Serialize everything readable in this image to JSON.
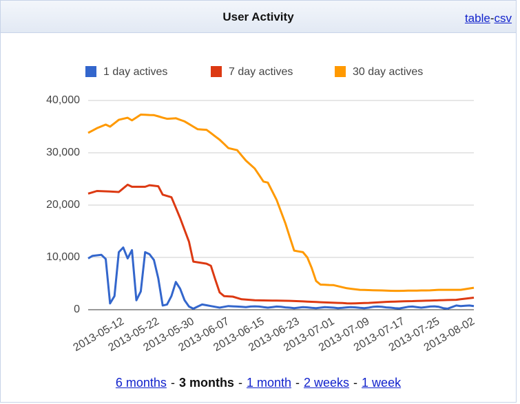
{
  "header": {
    "title": "User Activity",
    "links": [
      "table",
      "csv"
    ],
    "separator": "-"
  },
  "chart_data": {
    "type": "line",
    "categories": [
      null,
      null,
      null,
      null,
      null,
      null,
      null,
      null,
      "2013-05-12",
      null,
      null,
      null,
      null,
      null,
      null,
      null,
      "2013-05-22",
      null,
      null,
      null,
      null,
      null,
      null,
      null,
      "2013-05-30",
      null,
      null,
      null,
      null,
      null,
      null,
      null,
      "2013-06-07",
      null,
      null,
      null,
      null,
      null,
      null,
      null,
      "2013-06-15",
      null,
      null,
      null,
      null,
      null,
      null,
      null,
      "2013-06-23",
      null,
      null,
      null,
      null,
      null,
      null,
      null,
      "2013-07-01",
      null,
      null,
      null,
      null,
      null,
      null,
      null,
      "2013-07-09",
      null,
      null,
      null,
      null,
      null,
      null,
      null,
      "2013-07-17",
      null,
      null,
      null,
      null,
      null,
      null,
      null,
      "2013-07-25",
      null,
      null,
      null,
      null,
      null,
      null,
      null,
      "2013-08-02"
    ],
    "series": [
      {
        "name": "1 day actives",
        "color": "#3366cc",
        "values": [
          9800,
          10300,
          10400,
          10500,
          9700,
          1200,
          2600,
          11000,
          11900,
          9800,
          11400,
          1800,
          3500,
          11000,
          10600,
          9500,
          6000,
          800,
          1000,
          2600,
          5300,
          4000,
          1800,
          600,
          200,
          600,
          1000,
          850,
          700,
          550,
          400,
          550,
          700,
          650,
          600,
          550,
          500,
          600,
          650,
          600,
          500,
          400,
          500,
          600,
          550,
          450,
          400,
          300,
          400,
          500,
          450,
          350,
          300,
          400,
          500,
          450,
          400,
          300,
          350,
          450,
          500,
          450,
          350,
          300,
          400,
          550,
          600,
          550,
          450,
          400,
          300,
          250,
          400,
          550,
          600,
          500,
          400,
          500,
          600,
          650,
          550,
          300,
          200,
          500,
          800,
          700,
          750,
          800,
          700
        ]
      },
      {
        "name": "7 day actives",
        "color": "#dc3912",
        "values": [
          22200,
          22450,
          22700,
          22670,
          22630,
          22600,
          22550,
          22500,
          23200,
          23900,
          23500,
          23500,
          23500,
          23500,
          23800,
          23700,
          23600,
          22000,
          21750,
          21500,
          19500,
          17500,
          15250,
          13000,
          9200,
          9070,
          8930,
          8800,
          8400,
          5800,
          3300,
          2600,
          2550,
          2500,
          2250,
          2000,
          1930,
          1870,
          1800,
          1790,
          1770,
          1760,
          1750,
          1740,
          1730,
          1710,
          1700,
          1660,
          1630,
          1590,
          1550,
          1510,
          1480,
          1440,
          1400,
          1370,
          1330,
          1300,
          1270,
          1230,
          1200,
          1230,
          1250,
          1280,
          1300,
          1350,
          1400,
          1450,
          1500,
          1530,
          1550,
          1580,
          1600,
          1630,
          1650,
          1680,
          1700,
          1730,
          1750,
          1780,
          1800,
          1830,
          1850,
          1880,
          1900,
          2000,
          2100,
          2200,
          2300
        ]
      },
      {
        "name": "30 day actives",
        "color": "#ff9900",
        "values": [
          33800,
          34250,
          34700,
          35050,
          35400,
          35000,
          35650,
          36300,
          36500,
          36700,
          36200,
          36750,
          37300,
          37270,
          37230,
          37200,
          36970,
          36730,
          36500,
          36550,
          36600,
          36300,
          36000,
          35500,
          35000,
          34500,
          34450,
          34400,
          33770,
          33130,
          32500,
          31700,
          30900,
          30700,
          30500,
          29500,
          28500,
          27750,
          27000,
          25750,
          24500,
          24300,
          22650,
          21000,
          18750,
          16500,
          13900,
          11300,
          11150,
          11000,
          10000,
          8000,
          5500,
          4800,
          4770,
          4730,
          4700,
          4500,
          4300,
          4100,
          4000,
          3900,
          3800,
          3780,
          3750,
          3720,
          3700,
          3680,
          3650,
          3620,
          3600,
          3610,
          3620,
          3640,
          3650,
          3660,
          3680,
          3690,
          3700,
          3750,
          3800,
          3800,
          3800,
          3800,
          3800,
          3800,
          3930,
          4070,
          4200
        ]
      }
    ],
    "ylim": [
      0,
      40000
    ],
    "yticks": [
      0,
      {
        "value": 10000,
        "label": "10,000"
      },
      {
        "value": 20000,
        "label": "20,000"
      },
      {
        "value": 30000,
        "label": "30,000"
      },
      {
        "value": 40000,
        "label": "40,000"
      }
    ],
    "grid": true,
    "legend": "top"
  },
  "ranges": {
    "items": [
      "6 months",
      "3 months",
      "1 month",
      "2 weeks",
      "1 week"
    ],
    "current": 1,
    "separator": "-"
  }
}
